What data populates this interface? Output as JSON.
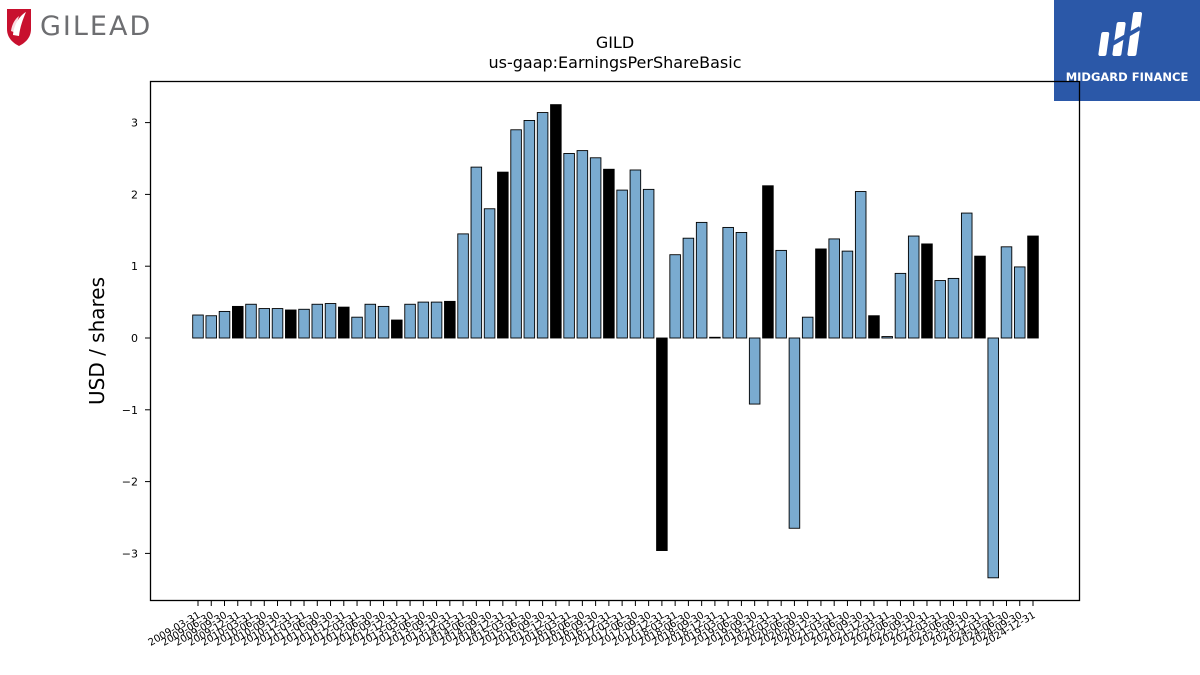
{
  "branding": {
    "left_logo_text": "GILEAD",
    "right_logo_text": "MIDGARD FINANCE"
  },
  "colors": {
    "annual_bar": "#000000",
    "quarterly_bar": "#7aabd0",
    "bar_edge": "#000000",
    "left_logo_red": "#c8102e",
    "left_logo_gray": "#6d6e71",
    "right_logo_bg": "#2b58a8"
  },
  "chart_data": {
    "type": "bar",
    "title": "GILD",
    "subtitle": "us-gaap:EarningsPerShareBasic",
    "xlabel": "",
    "ylabel": "USD / shares",
    "ylim": [
      -3.6,
      3.6
    ],
    "yticks": [
      -3,
      -2,
      -1,
      0,
      1,
      2,
      3
    ],
    "ytick_labels": [
      "−3",
      "−2",
      "−1",
      "0",
      "1",
      "2",
      "3"
    ],
    "grid": false,
    "legend": "none",
    "categories": [
      "2009-03-31",
      "2009-06-30",
      "2009-09-30",
      "2009-12-31",
      "2010-03-31",
      "2010-06-30",
      "2010-09-30",
      "2010-12-31",
      "2011-03-31",
      "2011-06-30",
      "2011-09-30",
      "2011-12-31",
      "2012-03-31",
      "2012-06-30",
      "2012-09-30",
      "2012-12-31",
      "2013-03-31",
      "2013-06-30",
      "2013-09-30",
      "2013-12-31",
      "2014-03-31",
      "2014-06-30",
      "2014-09-30",
      "2014-12-31",
      "2015-03-31",
      "2015-06-30",
      "2015-09-30",
      "2015-12-31",
      "2016-03-31",
      "2016-06-30",
      "2016-09-30",
      "2016-12-31",
      "2017-03-31",
      "2017-06-30",
      "2017-09-30",
      "2017-12-31",
      "2018-03-31",
      "2018-06-30",
      "2018-09-30",
      "2018-12-31",
      "2019-03-31",
      "2019-06-30",
      "2019-09-30",
      "2019-12-31",
      "2020-03-31",
      "2020-06-30",
      "2020-09-30",
      "2020-12-31",
      "2021-03-31",
      "2021-06-30",
      "2021-09-30",
      "2021-12-31",
      "2022-03-31",
      "2022-06-30",
      "2022-09-30",
      "2022-12-31",
      "2023-03-31",
      "2023-06-30",
      "2023-09-30",
      "2023-12-31",
      "2024-03-31",
      "2024-06-30",
      "2024-09-30",
      "2024-12-31"
    ],
    "values": [
      0.32,
      0.31,
      0.37,
      0.44,
      0.47,
      0.41,
      0.41,
      0.39,
      0.4,
      0.47,
      0.48,
      0.43,
      0.29,
      0.47,
      0.44,
      0.25,
      0.47,
      0.5,
      0.5,
      0.51,
      1.45,
      2.38,
      1.8,
      2.31,
      2.9,
      3.03,
      3.14,
      3.25,
      2.57,
      2.61,
      2.51,
      2.35,
      2.06,
      2.34,
      2.07,
      -2.96,
      1.16,
      1.39,
      1.61,
      0.01,
      1.54,
      1.47,
      -0.92,
      2.12,
      1.22,
      -2.65,
      0.29,
      1.24,
      1.38,
      1.21,
      2.04,
      0.31,
      0.02,
      0.9,
      1.42,
      1.31,
      0.8,
      0.83,
      1.74,
      1.14,
      -3.34,
      1.27,
      0.99,
      1.42
    ],
    "annual": [
      false,
      false,
      false,
      true,
      false,
      false,
      false,
      true,
      false,
      false,
      false,
      true,
      false,
      false,
      false,
      true,
      false,
      false,
      false,
      true,
      false,
      false,
      false,
      true,
      false,
      false,
      false,
      true,
      false,
      false,
      false,
      true,
      false,
      false,
      false,
      true,
      false,
      false,
      false,
      true,
      false,
      false,
      false,
      true,
      false,
      false,
      false,
      true,
      false,
      false,
      false,
      true,
      false,
      false,
      false,
      true,
      false,
      false,
      false,
      true,
      false,
      false,
      false,
      true
    ]
  }
}
